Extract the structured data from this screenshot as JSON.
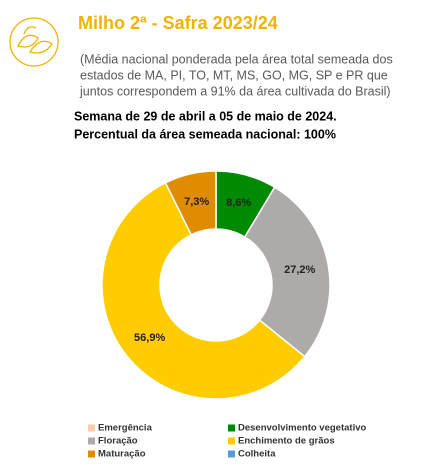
{
  "header": {
    "title": "Milho 2ª - Safra 2023/24",
    "subtitle": [
      "(Média nacional ponderada pela área total semeada dos",
      "estados de MA, PI, TO, MT, MS, GO, MG, SP e PR que",
      "juntos correspondem a 91% da área cultivada do Brasil)"
    ],
    "week": "Semana de 29 de abril a 05 de maio de 2024.",
    "share": "Percentual da área semeada nacional: 100%"
  },
  "chart_data": {
    "type": "donut",
    "categories": [
      "Emergência",
      "Desenvolvimento vegetativo",
      "Floração",
      "Enchimento de grãos",
      "Maturação",
      "Colheita"
    ],
    "values": [
      0,
      8.6,
      27.2,
      56.9,
      7.3,
      0
    ],
    "value_labels": [
      null,
      "8,6%",
      "27,2%",
      "56,9%",
      "7,3%",
      null
    ],
    "colors": [
      "#f8cbad",
      "#008a00",
      "#aeaaaa",
      "#ffcc00",
      "#e08c00",
      "#5b9bd5"
    ]
  }
}
